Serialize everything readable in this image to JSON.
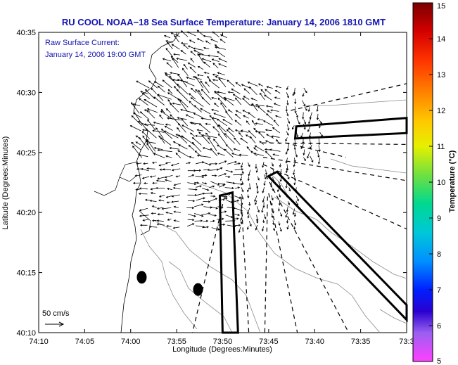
{
  "chart_data": {
    "type": "vector-field-map",
    "title": "RU COOL  NOAA−18  Sea Surface Temperature:  January 14, 2006 1810 GMT",
    "overlay_lines": [
      "Raw Surface Current:",
      "January 14, 2006 19:00 GMT"
    ],
    "xlabel": "Longitude (Degrees:Minutes)",
    "ylabel": "Latitude (Degrees:Minutes)",
    "x_ticks": [
      "74:10",
      "74:05",
      "74:00",
      "73:55",
      "73:50",
      "73:45",
      "73:40",
      "73:35",
      "73:3"
    ],
    "y_ticks": [
      "40:35",
      "40:30",
      "40:25",
      "40:20",
      "40:15",
      "40:10"
    ],
    "xlim": [
      -74.1667,
      -73.5
    ],
    "ylim": [
      40.1667,
      40.5833
    ],
    "scale_label": "50 cm/s",
    "colorbar": {
      "label": "Temperature (°C)",
      "range": [
        5,
        15
      ],
      "ticks": [
        "15",
        "14",
        "13",
        "12",
        "11",
        "10",
        "9",
        "8",
        "7",
        "6",
        "5"
      ]
    },
    "markers": [
      {
        "lon": -73.98,
        "lat": 40.2435
      },
      {
        "lon": -73.878,
        "lat": 40.2266
      }
    ],
    "outlines": [
      {
        "points": [
          [
            -73.7,
            40.4528
          ],
          [
            -73.5,
            40.4646
          ],
          [
            -73.5,
            40.4436
          ],
          [
            -73.702,
            40.4361
          ]
        ]
      },
      {
        "points": [
          [
            -73.7505,
            40.3837
          ],
          [
            -73.5,
            40.1845
          ],
          [
            -73.5,
            40.205
          ],
          [
            -73.735,
            40.3898
          ]
        ]
      },
      {
        "points": [
          [
            -73.8335,
            40.1667
          ],
          [
            -73.8385,
            40.3568
          ],
          [
            -73.8155,
            40.3611
          ],
          [
            -73.8055,
            40.1667
          ]
        ]
      }
    ],
    "dashed_lines": [
      [
        [
          -73.83,
          40.3555
        ],
        [
          -73.888,
          40.1667
        ]
      ],
      [
        [
          -73.8,
          40.3555
        ],
        [
          -73.786,
          40.1667
        ]
      ],
      [
        [
          -73.752,
          40.3555
        ],
        [
          -73.757,
          40.1667
        ]
      ],
      [
        [
          -73.75,
          40.36
        ],
        [
          -73.698,
          40.1667
        ]
      ],
      [
        [
          -73.755,
          40.385
        ],
        [
          -73.605,
          40.1667
        ]
      ],
      [
        [
          -73.76,
          40.4
        ],
        [
          -73.5,
          40.3106
        ]
      ],
      [
        [
          -73.76,
          40.41
        ],
        [
          -73.5,
          40.3776
        ]
      ],
      [
        [
          -73.762,
          40.43
        ],
        [
          -73.5,
          40.4278
        ]
      ],
      [
        [
          -73.71,
          40.475
        ],
        [
          -73.5,
          40.5122
        ]
      ],
      [
        [
          -73.72,
          40.43
        ],
        [
          -73.61,
          40.41
        ]
      ]
    ]
  }
}
